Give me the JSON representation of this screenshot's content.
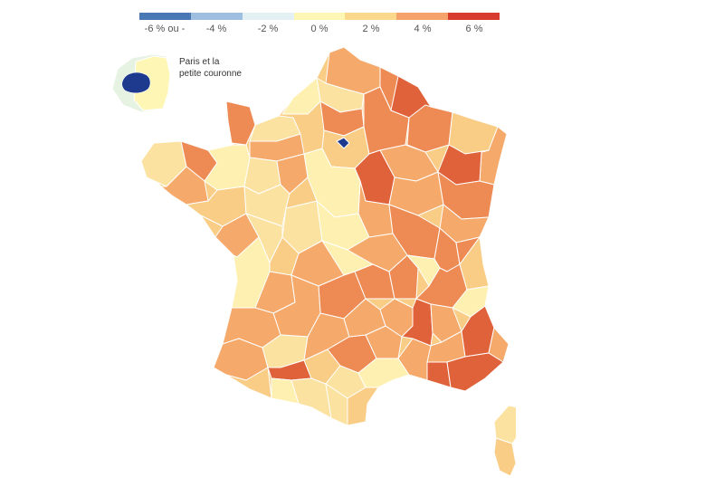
{
  "legend": {
    "labels": [
      "-6 % ou -",
      "-4 %",
      "-2 %",
      "0 %",
      "2 %",
      "4 %",
      "6 %"
    ],
    "colors": [
      "#4a78b4",
      "#9ebfe0",
      "#e3f0f4",
      "#fdf6b5",
      "#fad98c",
      "#f5a36a",
      "#d83c2c"
    ]
  },
  "inset": {
    "label_line1": "Paris et la",
    "label_line2": "petite couronne"
  },
  "map": {
    "icon": "france-map",
    "colors": {
      "paris": "#1d3a8f",
      "petite_couronne": "#fdf6b5",
      "light": "#fdf0b0",
      "pale": "#fbe2a0",
      "mid": "#f9cd86",
      "orange": "#f5a96b",
      "strong": "#ee8b55",
      "dark": "#e0623a",
      "border": "#ffffff"
    }
  }
}
